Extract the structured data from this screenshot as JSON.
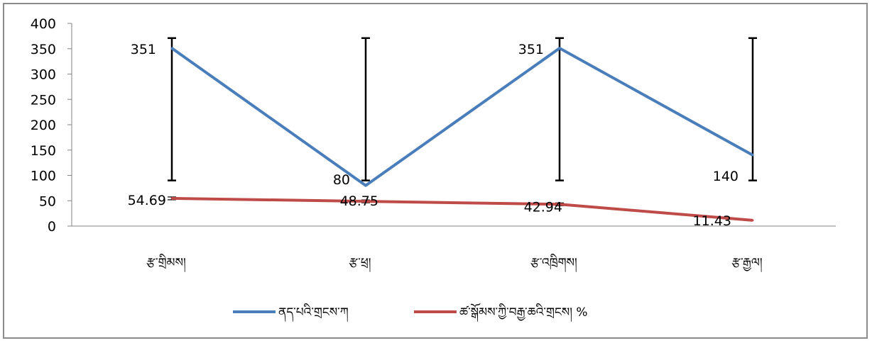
{
  "chart_data": {
    "type": "line",
    "categories": [
      "རྩ་གྲིམས།",
      "རྩ་ཕྲ།",
      "རྩ་འཁྲིགས།",
      "རྩ་རྒྱལ།"
    ],
    "series": [
      {
        "name": "ནད་པའི་གྲངས་ཀ",
        "color": "#4a7ebb",
        "values": [
          351,
          80,
          351,
          140
        ],
        "labels": [
          "351",
          "80",
          "351",
          "140"
        ]
      },
      {
        "name": "ཚ་སྒོམས་ཀྱི་བརྒྱ་ཆའི་གྲངས། %",
        "color": "#be4b48",
        "values": [
          54.69,
          48.75,
          42.94,
          11.43
        ],
        "labels": [
          "54.69",
          "48.75",
          "42.94",
          "11.43"
        ]
      }
    ],
    "error_bars": {
      "blue_series": {
        "low": [
          90,
          90,
          90,
          90
        ],
        "high": [
          371,
          371,
          371,
          371
        ]
      },
      "red_series_marker": "short dash"
    },
    "ylim": [
      0,
      400
    ],
    "yticks": [
      "0",
      "50",
      "100",
      "150",
      "200",
      "250",
      "300",
      "350",
      "400"
    ],
    "grid": false,
    "legend_position": "bottom",
    "title": "",
    "xlabel": "",
    "ylabel": ""
  }
}
